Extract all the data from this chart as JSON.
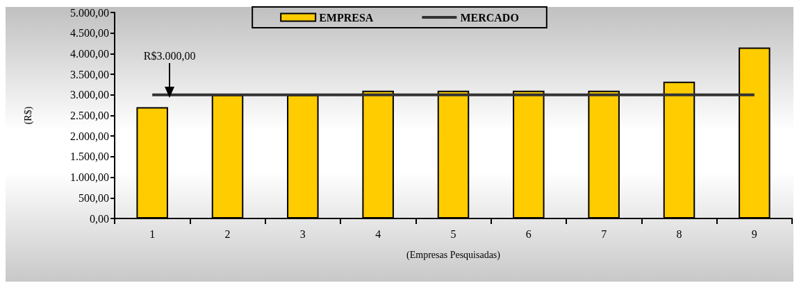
{
  "chart_data": {
    "type": "bar",
    "xlabel": "(Empresas Pesquisadas)",
    "ylabel": "(R$)",
    "categories": [
      "1",
      "2",
      "3",
      "4",
      "5",
      "6",
      "7",
      "8",
      "9"
    ],
    "series": [
      {
        "name": "EMPRESA",
        "color": "#ffcc00",
        "values": [
          2700,
          3000,
          3000,
          3100,
          3100,
          3100,
          3100,
          3320,
          4150
        ]
      },
      {
        "name": "MERCADO",
        "type": "line",
        "color": "#333333",
        "values": [
          3000,
          3000,
          3000,
          3000,
          3000,
          3000,
          3000,
          3000,
          3000
        ]
      }
    ],
    "ylim": [
      0,
      5000
    ],
    "yticks": [
      {
        "value": 0,
        "label": "0,00"
      },
      {
        "value": 500,
        "label": "500,00"
      },
      {
        "value": 1000,
        "label": "1.000,00"
      },
      {
        "value": 1500,
        "label": "1.500,00"
      },
      {
        "value": 2000,
        "label": "2.000,00"
      },
      {
        "value": 2500,
        "label": "2.500,00"
      },
      {
        "value": 3000,
        "label": "3.000,00"
      },
      {
        "value": 3500,
        "label": "3.500,00"
      },
      {
        "value": 4000,
        "label": "4.000,00"
      },
      {
        "value": 4500,
        "label": "4.500,00"
      },
      {
        "value": 5000,
        "label": "5.000,00"
      }
    ],
    "annotations": [
      "R$3.000,00"
    ],
    "grid": false,
    "legend": "top",
    "marker": "none"
  }
}
